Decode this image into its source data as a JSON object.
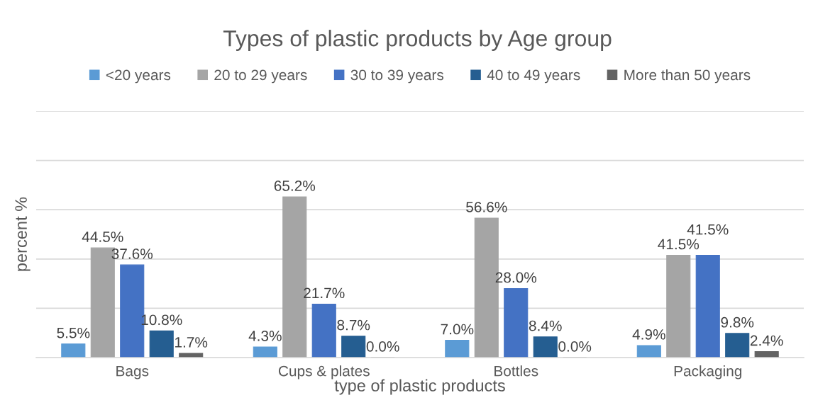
{
  "chart_data": {
    "type": "bar",
    "title": "Types of plastic products by Age group",
    "xlabel": "type of plastic products",
    "ylabel": "percent %",
    "categories": [
      "Bags",
      "Cups & plates",
      "Bottles",
      "Packaging"
    ],
    "series": [
      {
        "name": "<20 years",
        "color": "#5b9bd5",
        "values": [
          5.5,
          4.3,
          7.0,
          4.9
        ],
        "value_labels": [
          "5.5%",
          "4.3%",
          "7.0%",
          "4.9%"
        ]
      },
      {
        "name": "20 to 29 years",
        "color": "#a5a5a5",
        "values": [
          44.5,
          65.2,
          56.6,
          41.5
        ],
        "value_labels": [
          "44.5%",
          "65.2%",
          "56.6%",
          "41.5%"
        ]
      },
      {
        "name": "30 to 39 years",
        "color": "#4472c4",
        "values": [
          37.6,
          21.7,
          28.0,
          41.5
        ],
        "value_labels": [
          "37.6%",
          "21.7%",
          "28.0%",
          "41.5%"
        ]
      },
      {
        "name": "40 to 49 years",
        "color": "#255e91",
        "values": [
          10.8,
          8.7,
          8.4,
          9.8
        ],
        "value_labels": [
          "10.8%",
          "8.7%",
          "8.4%",
          "9.8%"
        ]
      },
      {
        "name": "More than 50 years",
        "color": "#636363",
        "values": [
          1.7,
          0.0,
          0.0,
          2.4
        ],
        "value_labels": [
          "1.7%",
          "0.0%",
          "0.0%",
          "2.4%"
        ]
      }
    ],
    "ylim": [
      0,
      100
    ],
    "yticks": [
      {
        "value": 0,
        "label": null
      },
      {
        "value": 20,
        "label": null
      },
      {
        "value": 40,
        "label": null
      },
      {
        "value": 60,
        "label": null
      },
      {
        "value": 80,
        "label": null
      },
      {
        "value": 100,
        "label": null
      }
    ],
    "tick_labels": "x",
    "grid": "y",
    "legend": "top"
  }
}
